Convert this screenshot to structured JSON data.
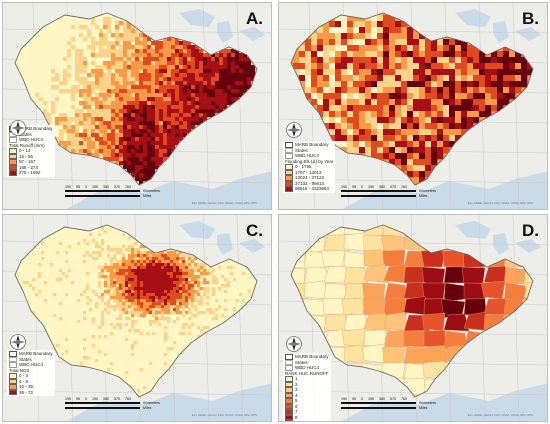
{
  "colors": {
    "ocean": "#c9dbe8",
    "land": "#ededea",
    "state_line": "#c9c9c9",
    "basin_outline": "#6b6b6b",
    "ramp": [
      "#fff6c4",
      "#fdd28a",
      "#f99a48",
      "#df4a1f",
      "#a50f15",
      "#67000d"
    ]
  },
  "panels": [
    {
      "letter": "A.",
      "legend": {
        "boundary_label": "MARB Boundary",
        "states_label": "States",
        "huc_label": "WBD HUC4",
        "title": "Total Runoff (mm)",
        "classes": [
          {
            "label": "0 - 14",
            "color": "#fff6c4"
          },
          {
            "label": "15 - 56",
            "color": "#fdd28a"
          },
          {
            "label": "57 - 167",
            "color": "#f99a48"
          },
          {
            "label": "168 - 274",
            "color": "#df4a1f"
          },
          {
            "label": "275 - 1592",
            "color": "#a50f15"
          }
        ]
      },
      "scale": {
        "ticks": [
          "190",
          "95",
          "0",
          "190",
          "380",
          "570",
          "760"
        ],
        "unit_top": "Kilometers",
        "unit_bottom": "Miles"
      },
      "credit": "Esri, HERE, Garmin, FAO, NOAA, USGS, EPA, NPS"
    },
    {
      "letter": "B.",
      "legend": {
        "boundary_label": "MARB Boundary",
        "states_label": "States",
        "huc_label": "WBD HUC4",
        "title": "Flooding Elk (Δ) by Year",
        "classes": [
          {
            "label": "0 - 1795",
            "color": "#fff6c4"
          },
          {
            "label": "1797 - 13013",
            "color": "#fdd28a"
          },
          {
            "label": "13024 - 37123",
            "color": "#f99a48"
          },
          {
            "label": "37133 - 98613",
            "color": "#df4a1f"
          },
          {
            "label": "98616 - 4323684",
            "color": "#a50f15"
          }
        ]
      },
      "scale": {
        "ticks": [
          "190",
          "95",
          "0",
          "190",
          "380",
          "570",
          "760"
        ],
        "unit_top": "Kilometers",
        "unit_bottom": "Miles"
      },
      "credit": "Esri, HERE, Garmin, FAO, NOAA, USGS, EPA, NPS"
    },
    {
      "letter": "C.",
      "legend": {
        "boundary_label": "MARB Boundary",
        "states_label": "States",
        "huc_label": "WBD HUC4",
        "title": "Total NO3",
        "classes": [
          {
            "label": "0 - 3",
            "color": "#fff6c4"
          },
          {
            "label": "4 - 9",
            "color": "#fdd28a"
          },
          {
            "label": "10 - 35",
            "color": "#f99a48"
          },
          {
            "label": "36 - 72",
            "color": "#a50f15"
          }
        ]
      },
      "scale": {
        "ticks": [
          "190",
          "95",
          "0",
          "190",
          "380",
          "570",
          "760"
        ],
        "unit_top": "Kilometers",
        "unit_bottom": "Miles"
      },
      "credit": "Esri, HERE, Garmin, FAO, NOAA, USGS, EPA, NPS"
    },
    {
      "letter": "D.",
      "legend": {
        "boundary_label": "MARB Boundary",
        "states_label": "States",
        "huc_label": "WBD HUC4",
        "title": "RANK HUC RUNOFF",
        "classes": [
          {
            "label": "1",
            "color": "#fff6c4"
          },
          {
            "label": "2",
            "color": "#fde3a0"
          },
          {
            "label": "3",
            "color": "#fdc47a"
          },
          {
            "label": "4",
            "color": "#fba45a"
          },
          {
            "label": "5",
            "color": "#f57e3c"
          },
          {
            "label": "6",
            "color": "#e7532a"
          },
          {
            "label": "7",
            "color": "#c92e1f"
          },
          {
            "label": "8",
            "color": "#9c0d14"
          },
          {
            "label": "9",
            "color": "#67000d"
          }
        ]
      },
      "scale": {
        "ticks": [
          "190",
          "95",
          "0",
          "190",
          "380",
          "570",
          "760"
        ],
        "unit_top": "Kilometers",
        "unit_bottom": "Miles"
      },
      "credit": "Esri, HERE, Garmin, FAO, NOAA, USGS, EPA, NPS"
    }
  ]
}
